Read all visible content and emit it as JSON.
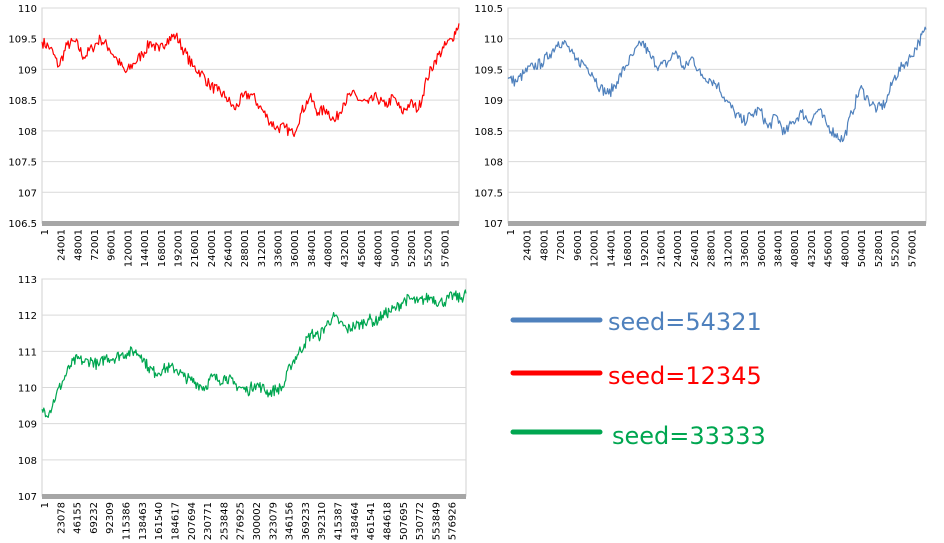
{
  "chart_data": [
    {
      "type": "line",
      "title": "",
      "xlabel": "",
      "ylabel": "",
      "ylim": [
        106.5,
        110
      ],
      "yticks": [
        "106.5",
        "107",
        "107.5",
        "108",
        "108.5",
        "109",
        "109.5",
        "110"
      ],
      "xticks": [
        "1",
        "24001",
        "48001",
        "72001",
        "96001",
        "120001",
        "144001",
        "168001",
        "192001",
        "216001",
        "240001",
        "264001",
        "288001",
        "312001",
        "336001",
        "360001",
        "384001",
        "408001",
        "432001",
        "456001",
        "480001",
        "504001",
        "528001",
        "552001",
        "576001"
      ],
      "grid": "horizontal",
      "series": [
        {
          "color": "#ff0000",
          "x": [
            1,
            12000,
            24000,
            36000,
            48000,
            60000,
            72000,
            84000,
            96000,
            108000,
            120000,
            132000,
            144000,
            156000,
            168000,
            180000,
            192000,
            204000,
            216000,
            228000,
            240000,
            252000,
            264000,
            276000,
            288000,
            300000,
            312000,
            324000,
            336000,
            348000,
            360000,
            372000,
            384000,
            396000,
            408000,
            420000,
            432000,
            444000,
            456000,
            468000,
            480000,
            492000,
            504000,
            516000,
            528000,
            540000,
            552000,
            564000,
            576000,
            588000,
            598000
          ],
          "values": [
            109.45,
            109.35,
            109.05,
            109.4,
            109.45,
            109.2,
            109.35,
            109.5,
            109.35,
            109.15,
            108.95,
            109.1,
            109.25,
            109.45,
            109.3,
            109.5,
            109.55,
            109.3,
            109.05,
            108.95,
            108.75,
            108.65,
            108.55,
            108.35,
            108.55,
            108.6,
            108.4,
            108.2,
            108.05,
            108.05,
            107.95,
            108.3,
            108.55,
            108.3,
            108.35,
            108.15,
            108.45,
            108.6,
            108.5,
            108.45,
            108.55,
            108.4,
            108.55,
            108.3,
            108.45,
            108.35,
            108.85,
            109.15,
            109.35,
            109.5,
            109.75
          ]
        }
      ]
    },
    {
      "type": "line",
      "title": "",
      "xlabel": "",
      "ylabel": "",
      "ylim": [
        107,
        110.5
      ],
      "yticks": [
        "107",
        "107.5",
        "108",
        "108.5",
        "109",
        "109.5",
        "110",
        "110.5"
      ],
      "xticks": [
        "1",
        "24001",
        "48001",
        "72001",
        "96001",
        "120001",
        "144001",
        "168001",
        "192001",
        "216001",
        "240001",
        "264001",
        "288001",
        "312001",
        "336001",
        "360001",
        "384001",
        "408001",
        "432001",
        "456001",
        "480001",
        "504001",
        "528001",
        "552001",
        "576001"
      ],
      "grid": "horizontal",
      "series": [
        {
          "color": "#4f81bd",
          "x": [
            1,
            12000,
            24000,
            36000,
            48000,
            60000,
            72000,
            84000,
            96000,
            108000,
            120000,
            132000,
            144000,
            156000,
            168000,
            180000,
            192000,
            204000,
            216000,
            228000,
            240000,
            252000,
            264000,
            276000,
            288000,
            300000,
            312000,
            324000,
            336000,
            348000,
            360000,
            372000,
            384000,
            396000,
            408000,
            420000,
            432000,
            444000,
            456000,
            468000,
            480000,
            492000,
            504000,
            516000,
            528000,
            540000,
            552000,
            564000,
            576000,
            588000,
            598000
          ],
          "values": [
            109.35,
            109.3,
            109.45,
            109.55,
            109.6,
            109.75,
            109.95,
            109.9,
            109.65,
            109.6,
            109.45,
            109.2,
            109.1,
            109.3,
            109.55,
            109.75,
            109.95,
            109.7,
            109.55,
            109.6,
            109.8,
            109.5,
            109.7,
            109.4,
            109.35,
            109.25,
            109.0,
            108.8,
            108.65,
            108.75,
            108.85,
            108.55,
            108.75,
            108.45,
            108.65,
            108.8,
            108.65,
            108.85,
            108.6,
            108.45,
            108.35,
            108.8,
            109.2,
            109.0,
            108.85,
            108.95,
            109.35,
            109.55,
            109.7,
            109.95,
            110.15
          ]
        }
      ]
    },
    {
      "type": "line",
      "title": "",
      "xlabel": "",
      "ylabel": "",
      "ylim": [
        107,
        113
      ],
      "yticks": [
        "107",
        "108",
        "109",
        "110",
        "111",
        "112",
        "113"
      ],
      "xticks": [
        "1",
        "23078",
        "46155",
        "69232",
        "92309",
        "115386",
        "138463",
        "161540",
        "184617",
        "207694",
        "230771",
        "253848",
        "276925",
        "300002",
        "323079",
        "346156",
        "369233",
        "392310",
        "415387",
        "438464",
        "461541",
        "484618",
        "507695",
        "530772",
        "553849",
        "576926"
      ],
      "grid": "horizontal",
      "series": [
        {
          "color": "#00a650",
          "x": [
            1,
            10000,
            20000,
            30000,
            40000,
            50000,
            60000,
            70000,
            80000,
            90000,
            100000,
            110000,
            120000,
            130000,
            140000,
            150000,
            160000,
            170000,
            180000,
            190000,
            200000,
            210000,
            220000,
            230000,
            240000,
            250000,
            260000,
            270000,
            280000,
            290000,
            300000,
            310000,
            320000,
            330000,
            340000,
            350000,
            360000,
            370000,
            380000,
            390000,
            400000,
            410000,
            420000,
            430000,
            440000,
            450000,
            460000,
            470000,
            480000,
            490000,
            500000,
            510000,
            520000,
            530000,
            540000,
            550000,
            560000,
            570000,
            580000,
            590000,
            598000
          ],
          "values": [
            109.4,
            109.3,
            109.8,
            110.2,
            110.6,
            110.8,
            110.7,
            110.75,
            110.6,
            110.85,
            110.8,
            110.9,
            110.95,
            111.0,
            110.9,
            110.55,
            110.4,
            110.5,
            110.55,
            110.5,
            110.3,
            110.2,
            110.1,
            110.0,
            110.3,
            110.2,
            110.3,
            110.1,
            110.0,
            109.9,
            110.1,
            110.0,
            109.85,
            109.95,
            110.0,
            110.6,
            110.9,
            111.2,
            111.5,
            111.4,
            111.7,
            111.95,
            111.8,
            111.6,
            111.7,
            111.75,
            111.9,
            111.8,
            112.0,
            112.1,
            112.2,
            112.4,
            112.45,
            112.35,
            112.45,
            112.5,
            112.35,
            112.4,
            112.55,
            112.45,
            112.6
          ]
        }
      ]
    }
  ],
  "legend": [
    {
      "label": "seed=54321",
      "color": "#4f81bd"
    },
    {
      "label": "seed=12345",
      "color": "#ff0000"
    },
    {
      "label": "seed=33333",
      "color": "#00a650"
    }
  ]
}
